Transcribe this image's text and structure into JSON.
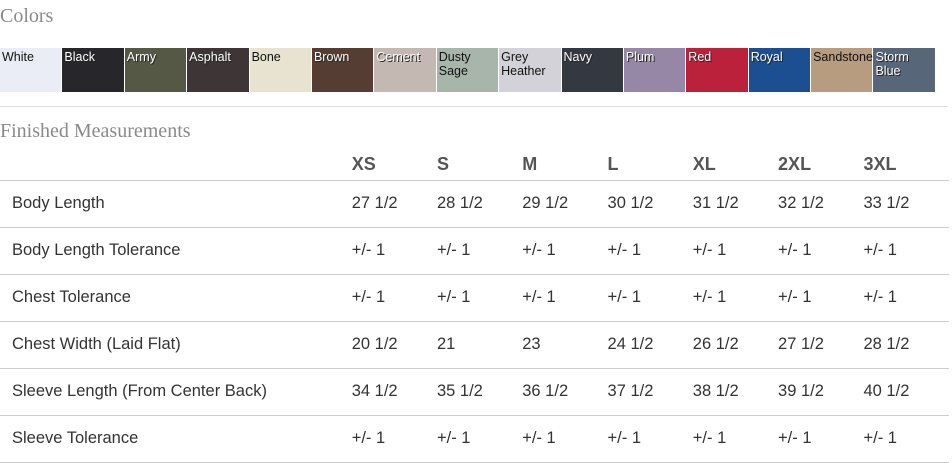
{
  "colors": {
    "title": "Colors",
    "swatches": [
      {
        "name": "White",
        "color": "#eaedf5",
        "dark": true
      },
      {
        "name": "Black",
        "color": "#26262b",
        "dark": false
      },
      {
        "name": "Army",
        "color": "#555845",
        "dark": false
      },
      {
        "name": "Asphalt",
        "color": "#3e3537",
        "dark": false
      },
      {
        "name": "Bone",
        "color": "#e8e2d1",
        "dark": true
      },
      {
        "name": "Brown",
        "color": "#553d33",
        "dark": false
      },
      {
        "name": "Cement",
        "color": "#c3b9b2",
        "dark": false
      },
      {
        "name": "Dusty Sage",
        "color": "#a8b5ab",
        "dark": true
      },
      {
        "name": "Grey Heather",
        "color": "#d3d2d9",
        "dark": true
      },
      {
        "name": "Navy",
        "color": "#343841",
        "dark": false
      },
      {
        "name": "Plum",
        "color": "#9787a7",
        "dark": false
      },
      {
        "name": "Red",
        "color": "#bb213b",
        "dark": false
      },
      {
        "name": "Royal",
        "color": "#1c4f92",
        "dark": false
      },
      {
        "name": "Sandstone",
        "color": "#b79c80",
        "dark": true
      },
      {
        "name": "Storm Blue",
        "color": "#576679",
        "dark": false
      }
    ]
  },
  "measurements": {
    "title": "Finished Measurements",
    "sizes": [
      "XS",
      "S",
      "M",
      "L",
      "XL",
      "2XL",
      "3XL"
    ],
    "rows": [
      {
        "label": "Body Length",
        "values": [
          "27 1/2",
          "28 1/2",
          "29 1/2",
          "30 1/2",
          "31 1/2",
          "32 1/2",
          "33 1/2"
        ]
      },
      {
        "label": "Body Length Tolerance",
        "values": [
          "+/- 1",
          "+/- 1",
          "+/- 1",
          "+/- 1",
          "+/- 1",
          "+/- 1",
          "+/- 1"
        ]
      },
      {
        "label": "Chest Tolerance",
        "values": [
          "+/- 1",
          "+/- 1",
          "+/- 1",
          "+/- 1",
          "+/- 1",
          "+/- 1",
          "+/- 1"
        ]
      },
      {
        "label": "Chest Width (Laid Flat)",
        "values": [
          "20 1/2",
          "21",
          "23",
          "24 1/2",
          "26 1/2",
          "27 1/2",
          "28 1/2"
        ]
      },
      {
        "label": "Sleeve Length (From Center Back)",
        "values": [
          "34 1/2",
          "35 1/2",
          "36 1/2",
          "37 1/2",
          "38 1/2",
          "39 1/2",
          "40 1/2"
        ]
      },
      {
        "label": "Sleeve Tolerance",
        "values": [
          "+/- 1",
          "+/- 1",
          "+/- 1",
          "+/- 1",
          "+/- 1",
          "+/- 1",
          "+/- 1"
        ]
      }
    ]
  }
}
